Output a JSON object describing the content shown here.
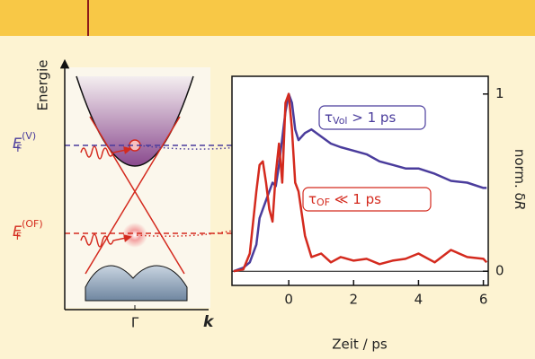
{
  "chart_data": {
    "type": "line",
    "x_label": "Zeit / ps",
    "y_label": {
      "text": "norm. δ",
      "italic": "R"
    },
    "xlim": [
      -1.75,
      6.15
    ],
    "xticks": [
      0,
      2,
      4,
      6
    ],
    "ylim": [
      -0.08,
      1.1
    ],
    "yticks": [
      0,
      1
    ],
    "x": [
      -1.7,
      -1.4,
      -1.2,
      -1.0,
      -0.9,
      -0.8,
      -0.7,
      -0.6,
      -0.5,
      -0.4,
      -0.3,
      -0.2,
      -0.1,
      0,
      0.1,
      0.2,
      0.3,
      0.5,
      0.7,
      1.0,
      1.3,
      1.6,
      2.0,
      2.4,
      2.8,
      3.2,
      3.6,
      4.0,
      4.5,
      5.0,
      5.5,
      6.0,
      6.1
    ],
    "series": [
      {
        "color": "#4a3c9c",
        "values": [
          0,
          0.02,
          0.05,
          0.15,
          0.3,
          0.35,
          0.4,
          0.45,
          0.5,
          0.48,
          0.6,
          0.75,
          0.9,
          1.0,
          0.95,
          0.8,
          0.74,
          0.78,
          0.8,
          0.76,
          0.72,
          0.7,
          0.68,
          0.66,
          0.62,
          0.6,
          0.58,
          0.58,
          0.55,
          0.51,
          0.5,
          0.47,
          0.47
        ]
      },
      {
        "color": "#d42a1e",
        "values": [
          0,
          0.01,
          0.1,
          0.45,
          0.6,
          0.62,
          0.5,
          0.35,
          0.28,
          0.55,
          0.72,
          0.5,
          0.95,
          1.0,
          0.8,
          0.5,
          0.45,
          0.2,
          0.08,
          0.1,
          0.05,
          0.08,
          0.06,
          0.07,
          0.04,
          0.06,
          0.07,
          0.1,
          0.05,
          0.12,
          0.08,
          0.07,
          0.05
        ]
      }
    ],
    "annotations": [
      {
        "symbol": "τ",
        "sub": "Vol",
        "text": " > 1 ps"
      },
      {
        "symbol": "τ",
        "sub": "OF",
        "text": " ≪ 1 ps"
      }
    ]
  },
  "diagram": {
    "y_label": "Energie",
    "levels": [
      {
        "symbol": "E",
        "sub": "F",
        "sup": "(V)"
      },
      {
        "symbol": "E",
        "sub": "F",
        "sup": "(OF)"
      }
    ],
    "gamma": "Γ",
    "k": "k"
  }
}
